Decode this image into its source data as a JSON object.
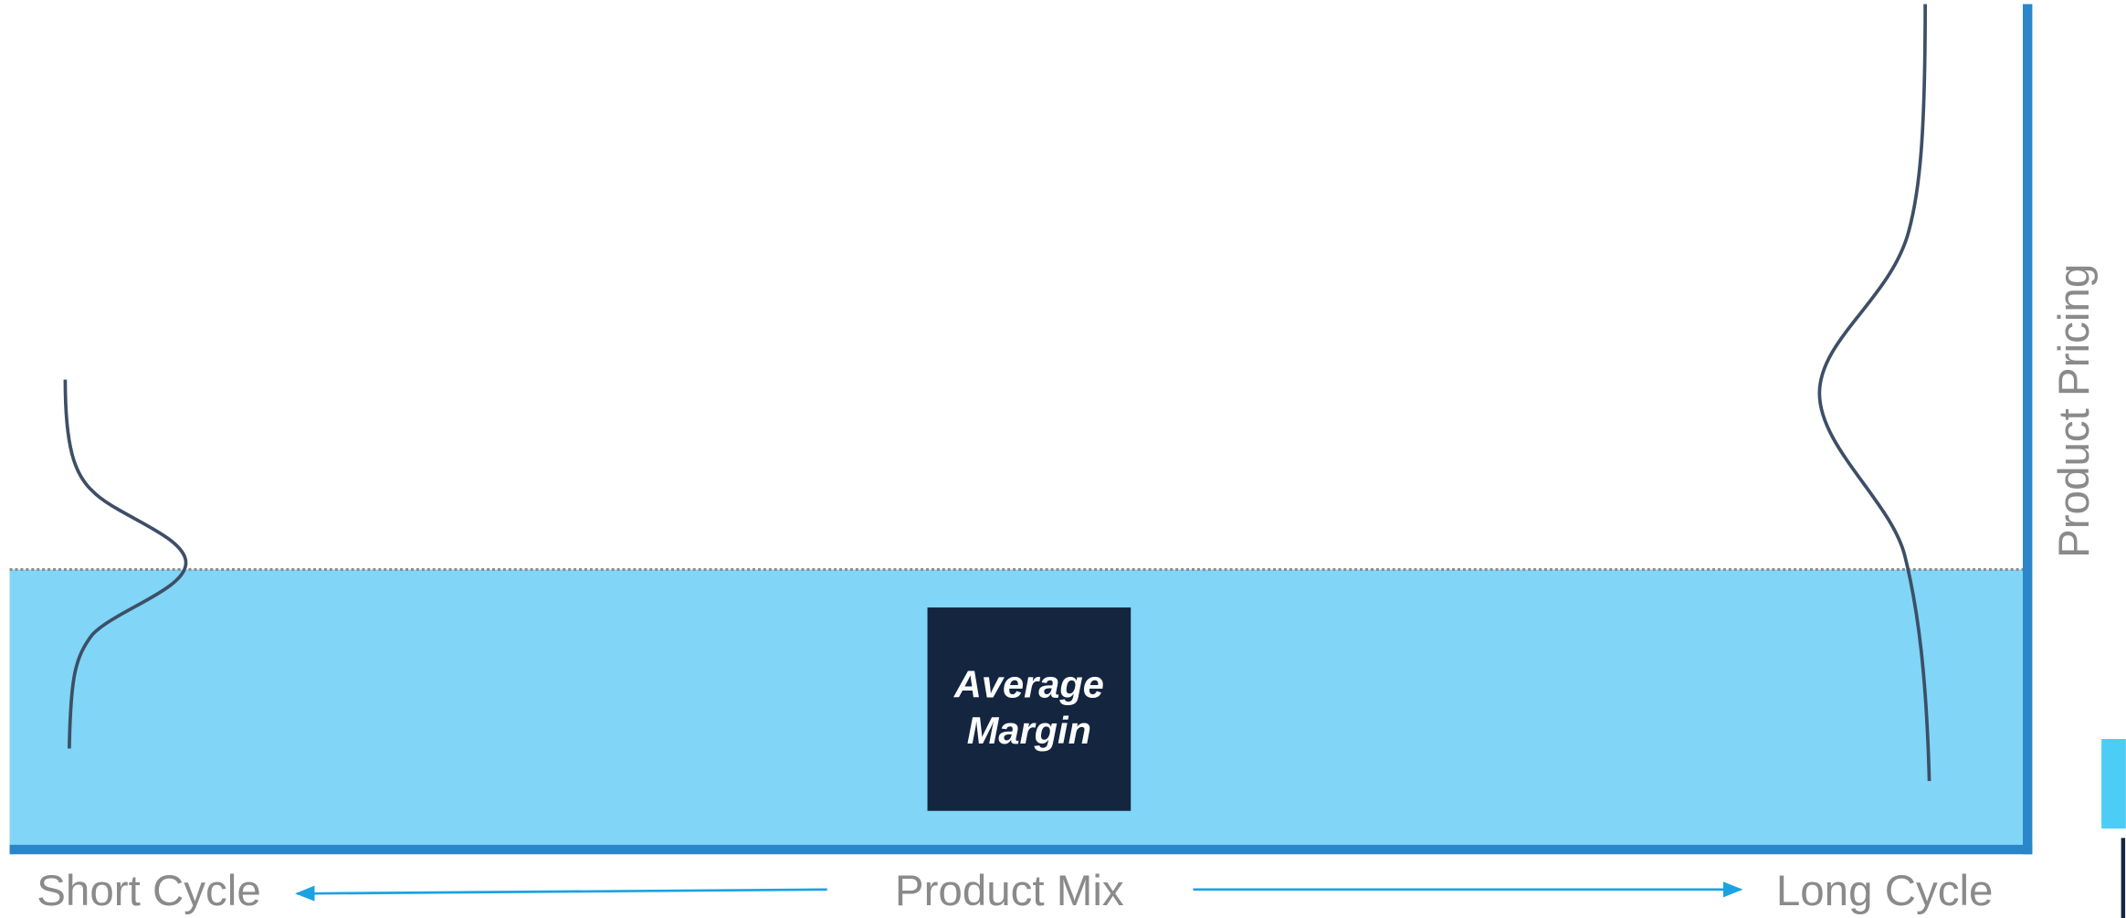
{
  "diagram": {
    "box": {
      "lines": [
        "Average",
        "Margin"
      ]
    },
    "x_axis": {
      "center": "Product Mix",
      "left": "Short Cycle",
      "right": "Long Cycle"
    },
    "y_axis": {
      "label": "Product Pricing"
    }
  }
}
